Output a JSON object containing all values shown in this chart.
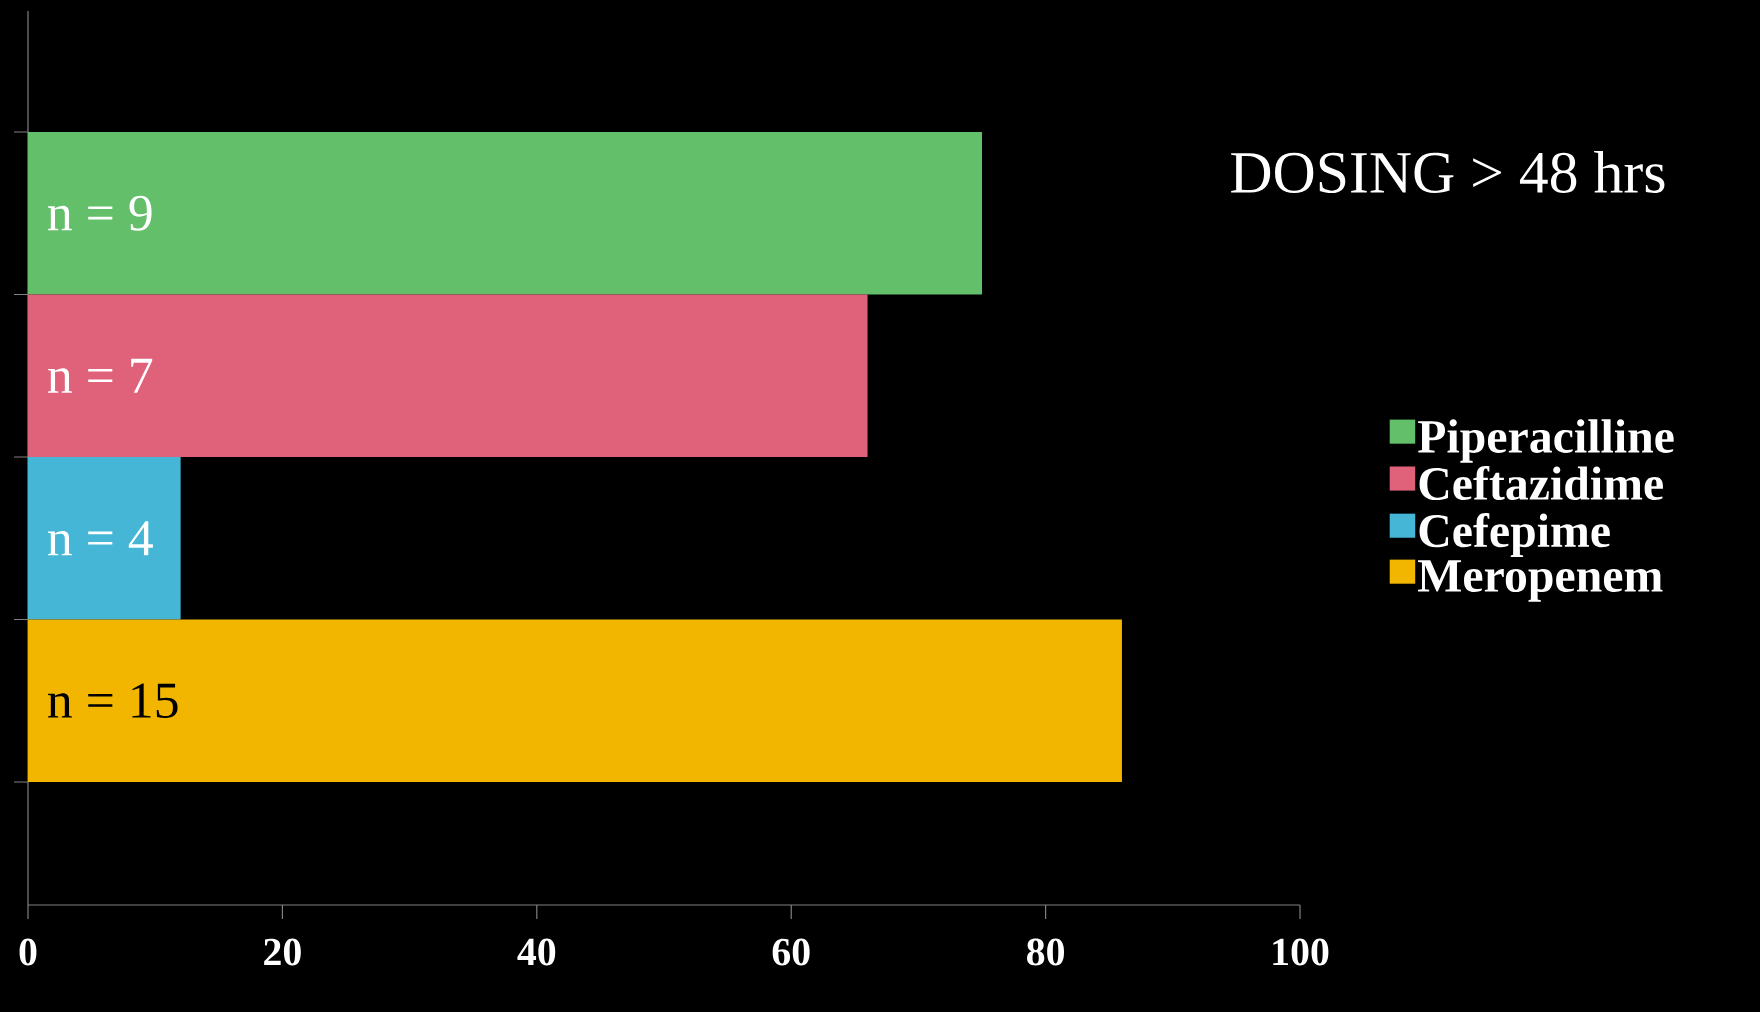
{
  "chart_data": {
    "type": "bar",
    "orientation": "horizontal",
    "title": "DOSING > 48 hrs",
    "categories": [
      null,
      null,
      null,
      null
    ],
    "annotations": [
      "n = 9",
      "n = 7",
      "n = 4",
      "n = 15"
    ],
    "series": [
      {
        "name": "Piperacilline",
        "color": "#63bf6a",
        "values": [
          75,
          null,
          null,
          null
        ]
      },
      {
        "name": "Ceftazidime",
        "color": "#e0627a",
        "values": [
          null,
          66,
          null,
          null
        ]
      },
      {
        "name": "Cefepime",
        "color": "#45b6d6",
        "values": [
          null,
          null,
          12,
          null
        ]
      },
      {
        "name": "Meropenem",
        "color": "#f2b600",
        "values": [
          null,
          null,
          null,
          86
        ]
      }
    ],
    "xlim": [
      0,
      100
    ],
    "xticks": [
      0,
      20,
      40,
      60,
      80,
      100
    ],
    "tick_labels": "x",
    "legend": "right",
    "grid": false
  }
}
